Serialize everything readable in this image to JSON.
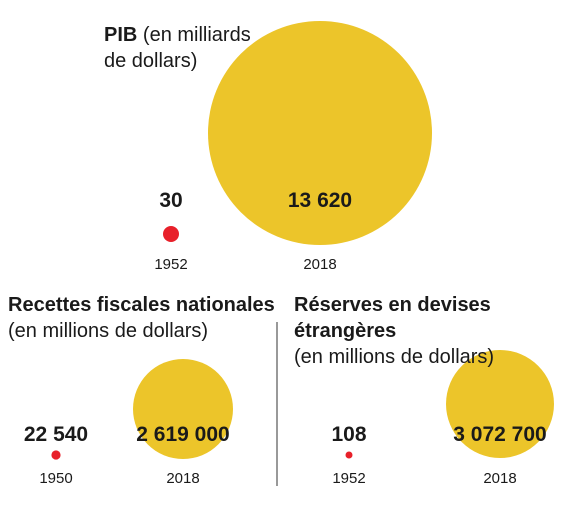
{
  "colors": {
    "old": "#e8202a",
    "new": "#ecc52a"
  },
  "chart_data": [
    {
      "type": "bubble",
      "title_bold": "PIB",
      "title_line1": "(en milliards",
      "title_line2": "de dollars)",
      "points": [
        {
          "year": "1952",
          "value": 30,
          "label": "30"
        },
        {
          "year": "2018",
          "value": 13620,
          "label": "13 620"
        }
      ]
    },
    {
      "type": "bubble",
      "title_bold": "Recettes fiscales nationales",
      "subtitle": "(en millions de dollars)",
      "points": [
        {
          "year": "1950",
          "value": 22540,
          "label": "22 540"
        },
        {
          "year": "2018",
          "value": 2619000,
          "label": "2 619 000"
        }
      ]
    },
    {
      "type": "bubble",
      "title_bold": "Réserves en devises étrangères",
      "subtitle": "(en millions de dollars)",
      "points": [
        {
          "year": "1952",
          "value": 108,
          "label": "108"
        },
        {
          "year": "2018",
          "value": 3072700,
          "label": "3 072 700"
        }
      ]
    }
  ]
}
